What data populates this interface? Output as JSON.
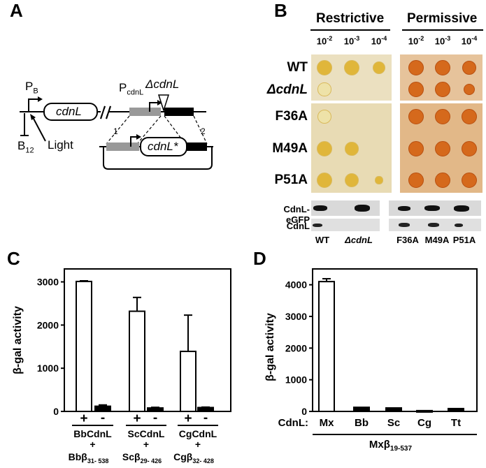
{
  "panels": {
    "A": "A",
    "B": "B",
    "C": "C",
    "D": "D"
  },
  "panelA": {
    "p_beta": "P",
    "p_beta_sub": "B",
    "p_cdnl": "P",
    "p_cdnl_sub": "cdnL",
    "delta_cdnl": "ΔcdnL",
    "gene": "cdnL",
    "gene_star": "cdnL*",
    "b12": "B",
    "b12_sub": "12",
    "light": "Light",
    "cross1": "1",
    "cross2": "2"
  },
  "panelB": {
    "restrictive": "Restrictive",
    "permissive": "Permissive",
    "dilutions": [
      {
        "base": "10",
        "exp": "-2"
      },
      {
        "base": "10",
        "exp": "-3"
      },
      {
        "base": "10",
        "exp": "-4"
      }
    ],
    "strains": [
      "WT",
      "ΔcdnL",
      "F36A",
      "M49A",
      "P51A"
    ],
    "blot_labels": [
      "CdnL-eGFP",
      "CdnL"
    ],
    "lanes": [
      "WT",
      "ΔcdnL",
      "F36A",
      "M49A",
      "P51A"
    ],
    "colors": {
      "restrictive_plate": "#e9ddb5",
      "restrictive_spot": "#e0b63a",
      "permissive_plate": "#e3b98a",
      "permissive_spot": "#d5691c"
    }
  },
  "panelC": {
    "ylabel": "β-gal activity",
    "yticks": [
      "0",
      "1000",
      "2000",
      "3000"
    ],
    "groups": [
      {
        "name": "BbCdnL",
        "beta": "Bbβ",
        "range": "31- 538"
      },
      {
        "name": "ScCdnL",
        "beta": "Scβ",
        "range": "29- 426"
      },
      {
        "name": "CgCdnL",
        "beta": "Cgβ",
        "range": "32- 428"
      }
    ],
    "plus": "+",
    "minus": "-",
    "plus_join": "+"
  },
  "panelD": {
    "ylabel": "β-gal activity",
    "yticks": [
      "0",
      "1000",
      "2000",
      "3000",
      "4000"
    ],
    "cdnl_label": "CdnL:",
    "bottom": "Mxβ",
    "bottom_sub": "19-537"
  },
  "chart_data": [
    {
      "type": "bar",
      "panel": "C",
      "ylabel": "β-gal activity",
      "ylim": [
        0,
        3300
      ],
      "categories": [
        "BbCdnL + Bbβ31-538",
        "ScCdnL + Scβ29-426",
        "CgCdnL + Cgβ32-428"
      ],
      "series": [
        {
          "name": "+",
          "values": [
            3010,
            2320,
            1390
          ],
          "errors": [
            15,
            320,
            840
          ],
          "fill": "white"
        },
        {
          "name": "-",
          "values": [
            120,
            80,
            90
          ],
          "errors": [
            30,
            15,
            10
          ],
          "fill": "black"
        }
      ]
    },
    {
      "type": "bar",
      "panel": "D",
      "ylabel": "β-gal activity",
      "ylim": [
        0,
        4500
      ],
      "categories": [
        "Mx",
        "Bb",
        "Sc",
        "Cg",
        "Tt"
      ],
      "values": [
        4100,
        130,
        110,
        25,
        90
      ],
      "errors": [
        90,
        0,
        0,
        0,
        0
      ],
      "fill": [
        "white",
        "black",
        "black",
        "black",
        "black"
      ]
    }
  ]
}
